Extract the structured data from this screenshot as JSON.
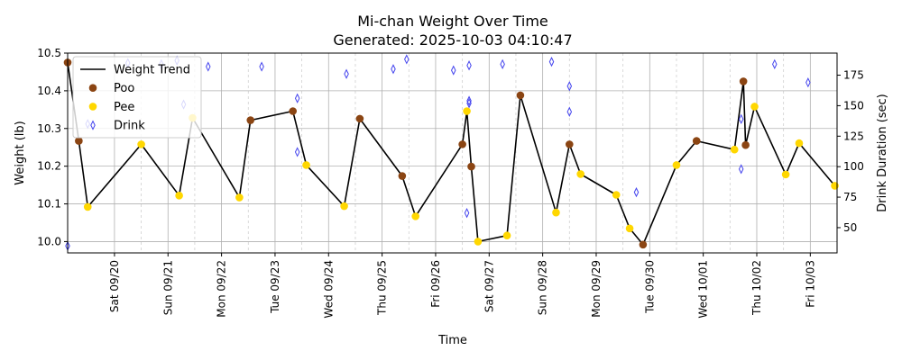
{
  "chart_data": {
    "type": "line",
    "title": "Mi-chan Weight Over Time",
    "subtitle": "Generated: 2025-10-03 04:10:47",
    "xlabel": "Time",
    "ylabel": "Weight (lb)",
    "y2label": "Drink Duration (sec)",
    "xlim": [
      "2025-09-19 03:00",
      "2025-10-03 12:00"
    ],
    "ylim": [
      9.97,
      10.5
    ],
    "y2lim": [
      29.3,
      193.1
    ],
    "grid": true,
    "legend_position": "upper-left",
    "x_ticks": [
      {
        "date": "2025-09-20",
        "label": "Sat 09/20"
      },
      {
        "date": "2025-09-21",
        "label": "Sun 09/21"
      },
      {
        "date": "2025-09-22",
        "label": "Mon 09/22"
      },
      {
        "date": "2025-09-23",
        "label": "Tue 09/23"
      },
      {
        "date": "2025-09-24",
        "label": "Wed 09/24"
      },
      {
        "date": "2025-09-25",
        "label": "Thu 09/25"
      },
      {
        "date": "2025-09-26",
        "label": "Fri 09/26"
      },
      {
        "date": "2025-09-27",
        "label": "Sat 09/27"
      },
      {
        "date": "2025-09-28",
        "label": "Sun 09/28"
      },
      {
        "date": "2025-09-29",
        "label": "Mon 09/29"
      },
      {
        "date": "2025-09-30",
        "label": "Tue 09/30"
      },
      {
        "date": "2025-10-01",
        "label": "Wed 10/01"
      },
      {
        "date": "2025-10-02",
        "label": "Thu 10/02"
      },
      {
        "date": "2025-10-03",
        "label": "Fri 10/03"
      }
    ],
    "minor_ticks": [
      "2025-09-20 12:00",
      "2025-09-21 12:00",
      "2025-09-22 12:00",
      "2025-09-23 12:00",
      "2025-09-24 12:00",
      "2025-09-25 12:00",
      "2025-09-26 12:00",
      "2025-09-27 12:00",
      "2025-09-28 12:00",
      "2025-09-29 12:00",
      "2025-09-30 12:00",
      "2025-10-01 12:00",
      "2025-10-02 12:00",
      "2025-10-03 12:00"
    ],
    "y_ticks": [
      {
        "value": 10.0,
        "label": "10.0"
      },
      {
        "value": 10.1,
        "label": "10.1"
      },
      {
        "value": 10.2,
        "label": "10.2"
      },
      {
        "value": 10.3,
        "label": "10.3"
      },
      {
        "value": 10.4,
        "label": "10.4"
      },
      {
        "value": 10.5,
        "label": "10.5"
      }
    ],
    "y2_ticks": [
      {
        "value": 50,
        "label": "50"
      },
      {
        "value": 75,
        "label": "75"
      },
      {
        "value": 100,
        "label": "100"
      },
      {
        "value": 125,
        "label": "125"
      },
      {
        "value": 150,
        "label": "150"
      },
      {
        "value": 175,
        "label": "175"
      }
    ],
    "series": [
      {
        "name": "Weight Trend",
        "type": "line",
        "color": "#000000",
        "points": [
          {
            "x": "2025-09-19 03:00",
            "y": 10.475
          },
          {
            "x": "2025-09-19 08:00",
            "y": 10.267
          },
          {
            "x": "2025-09-19 12:00",
            "y": 10.092
          },
          {
            "x": "2025-09-20 12:00",
            "y": 10.258
          },
          {
            "x": "2025-09-21 05:00",
            "y": 10.122
          },
          {
            "x": "2025-09-21 11:00",
            "y": 10.328
          },
          {
            "x": "2025-09-22 08:00",
            "y": 10.117
          },
          {
            "x": "2025-09-22 13:00",
            "y": 10.322
          },
          {
            "x": "2025-09-23 08:00",
            "y": 10.346
          },
          {
            "x": "2025-09-23 14:00",
            "y": 10.203
          },
          {
            "x": "2025-09-24 07:00",
            "y": 10.094
          },
          {
            "x": "2025-09-24 14:00",
            "y": 10.326
          },
          {
            "x": "2025-09-25 09:00",
            "y": 10.174
          },
          {
            "x": "2025-09-25 15:00",
            "y": 10.067
          },
          {
            "x": "2025-09-26 12:00",
            "y": 10.258
          },
          {
            "x": "2025-09-26 14:00",
            "y": 10.346
          },
          {
            "x": "2025-09-26 16:00",
            "y": 10.199
          },
          {
            "x": "2025-09-26 19:00",
            "y": 10.0
          },
          {
            "x": "2025-09-27 08:00",
            "y": 10.016
          },
          {
            "x": "2025-09-27 14:00",
            "y": 10.388
          },
          {
            "x": "2025-09-28 06:00",
            "y": 10.077
          },
          {
            "x": "2025-09-28 12:00",
            "y": 10.258
          },
          {
            "x": "2025-09-28 17:00",
            "y": 10.179
          },
          {
            "x": "2025-09-29 09:00",
            "y": 10.124
          },
          {
            "x": "2025-09-29 15:00",
            "y": 10.035
          },
          {
            "x": "2025-09-29 21:00",
            "y": 9.992
          },
          {
            "x": "2025-09-30 12:00",
            "y": 10.203
          },
          {
            "x": "2025-09-30 21:00",
            "y": 10.267
          },
          {
            "x": "2025-10-01 14:00",
            "y": 10.244
          },
          {
            "x": "2025-10-01 18:00",
            "y": 10.425
          },
          {
            "x": "2025-10-01 19:00",
            "y": 10.256
          },
          {
            "x": "2025-10-01 23:00",
            "y": 10.358
          },
          {
            "x": "2025-10-02 13:00",
            "y": 10.178
          },
          {
            "x": "2025-10-02 19:00",
            "y": 10.261
          },
          {
            "x": "2025-10-03 11:00",
            "y": 10.148
          }
        ]
      },
      {
        "name": "Poo",
        "type": "scatter",
        "marker": "circle",
        "color": "#8B4513",
        "points": [
          {
            "x": "2025-09-19 03:00",
            "y": 10.475
          },
          {
            "x": "2025-09-19 08:00",
            "y": 10.267
          },
          {
            "x": "2025-09-22 13:00",
            "y": 10.322
          },
          {
            "x": "2025-09-23 08:00",
            "y": 10.346
          },
          {
            "x": "2025-09-24 14:00",
            "y": 10.326
          },
          {
            "x": "2025-09-25 09:00",
            "y": 10.174
          },
          {
            "x": "2025-09-26 12:00",
            "y": 10.258
          },
          {
            "x": "2025-09-26 16:00",
            "y": 10.199
          },
          {
            "x": "2025-09-27 14:00",
            "y": 10.388
          },
          {
            "x": "2025-09-28 12:00",
            "y": 10.258
          },
          {
            "x": "2025-09-29 21:00",
            "y": 9.992
          },
          {
            "x": "2025-09-30 21:00",
            "y": 10.267
          },
          {
            "x": "2025-10-01 18:00",
            "y": 10.425
          },
          {
            "x": "2025-10-01 19:00",
            "y": 10.256
          }
        ]
      },
      {
        "name": "Pee",
        "type": "scatter",
        "marker": "circle",
        "color": "#FFD700",
        "points": [
          {
            "x": "2025-09-19 12:00",
            "y": 10.092
          },
          {
            "x": "2025-09-20 12:00",
            "y": 10.258
          },
          {
            "x": "2025-09-21 05:00",
            "y": 10.122
          },
          {
            "x": "2025-09-21 11:00",
            "y": 10.328
          },
          {
            "x": "2025-09-22 08:00",
            "y": 10.117
          },
          {
            "x": "2025-09-23 14:00",
            "y": 10.203
          },
          {
            "x": "2025-09-24 07:00",
            "y": 10.094
          },
          {
            "x": "2025-09-25 15:00",
            "y": 10.067
          },
          {
            "x": "2025-09-26 14:00",
            "y": 10.346
          },
          {
            "x": "2025-09-26 19:00",
            "y": 10.0
          },
          {
            "x": "2025-09-27 08:00",
            "y": 10.016
          },
          {
            "x": "2025-09-28 06:00",
            "y": 10.077
          },
          {
            "x": "2025-09-28 17:00",
            "y": 10.179
          },
          {
            "x": "2025-09-29 09:00",
            "y": 10.124
          },
          {
            "x": "2025-09-29 15:00",
            "y": 10.035
          },
          {
            "x": "2025-09-30 12:00",
            "y": 10.203
          },
          {
            "x": "2025-10-01 14:00",
            "y": 10.244
          },
          {
            "x": "2025-10-01 23:00",
            "y": 10.358
          },
          {
            "x": "2025-10-02 13:00",
            "y": 10.178
          },
          {
            "x": "2025-10-02 19:00",
            "y": 10.261
          },
          {
            "x": "2025-10-03 11:00",
            "y": 10.148
          }
        ]
      },
      {
        "name": "Drink",
        "type": "scatter",
        "marker": "thin_diamond",
        "axis": "y2",
        "color": "#4444EE",
        "points": [
          {
            "x": "2025-09-19 03:00",
            "y": 35
          },
          {
            "x": "2025-09-19 12:00",
            "y": 135
          },
          {
            "x": "2025-09-20 06:00",
            "y": 185
          },
          {
            "x": "2025-09-20 21:00",
            "y": 184
          },
          {
            "x": "2025-09-21 04:00",
            "y": 187
          },
          {
            "x": "2025-09-21 18:00",
            "y": 182
          },
          {
            "x": "2025-09-22 18:00",
            "y": 182
          },
          {
            "x": "2025-09-23 10:00",
            "y": 156
          },
          {
            "x": "2025-09-21 07:00",
            "y": 151
          },
          {
            "x": "2025-09-23 10:00",
            "y": 112
          },
          {
            "x": "2025-09-24 08:00",
            "y": 176
          },
          {
            "x": "2025-09-25 05:00",
            "y": 180
          },
          {
            "x": "2025-09-25 11:00",
            "y": 188
          },
          {
            "x": "2025-09-26 08:00",
            "y": 179
          },
          {
            "x": "2025-09-26 15:00",
            "y": 183
          },
          {
            "x": "2025-09-26 15:00",
            "y": 154
          },
          {
            "x": "2025-09-26 15:00",
            "y": 152
          },
          {
            "x": "2025-09-26 14:00",
            "y": 62
          },
          {
            "x": "2025-09-27 06:00",
            "y": 184
          },
          {
            "x": "2025-09-28 04:00",
            "y": 186
          },
          {
            "x": "2025-09-28 12:00",
            "y": 166
          },
          {
            "x": "2025-09-28 12:00",
            "y": 145
          },
          {
            "x": "2025-09-29 18:00",
            "y": 79
          },
          {
            "x": "2025-10-01 17:00",
            "y": 139
          },
          {
            "x": "2025-10-01 17:00",
            "y": 98
          },
          {
            "x": "2025-10-02 08:00",
            "y": 184
          },
          {
            "x": "2025-10-02 23:00",
            "y": 169
          }
        ]
      }
    ]
  }
}
